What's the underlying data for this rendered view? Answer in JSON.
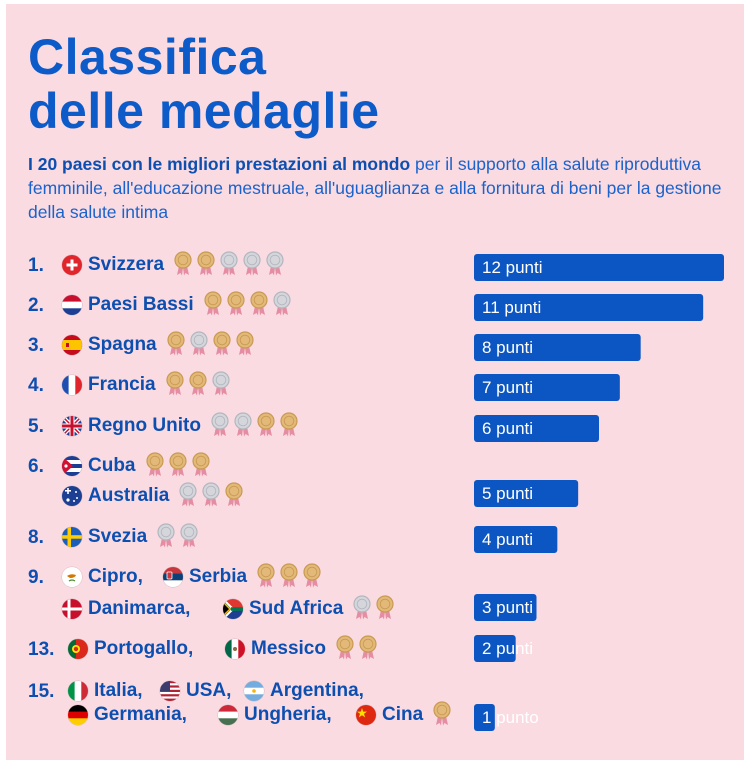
{
  "title_line1": "Classifica",
  "title_line2": "delle medaglie",
  "subtitle_bold": "I 20 paesi con le migliori prestazioni al mondo",
  "subtitle_rest": " per il supporto alla salute riproduttiva femminile, all'educazione mestruale, all'uguaglianza e alla fornitura di beni per la gestione della salute intima",
  "colors": {
    "brand_blue": "#0d5bc9",
    "bar_blue": "#0b56c2",
    "background": "#fadbe2",
    "gold_medal": "#e2b978",
    "silver_medal": "#d4d6dc"
  },
  "groups": [
    {
      "rank": "1.",
      "countries": [
        {
          "name": "Svizzera",
          "flag": "switzerland",
          "medals": [
            "gold",
            "gold",
            "silver",
            "silver",
            "silver"
          ]
        }
      ],
      "points": 12,
      "label": "12 punti"
    },
    {
      "rank": "2.",
      "countries": [
        {
          "name": "Paesi Bassi",
          "flag": "netherlands",
          "medals": [
            "gold",
            "gold",
            "gold",
            "silver"
          ]
        }
      ],
      "points": 11,
      "label": "11 punti"
    },
    {
      "rank": "3.",
      "countries": [
        {
          "name": "Spagna",
          "flag": "spain",
          "medals": [
            "gold",
            "silver",
            "gold",
            "gold"
          ]
        }
      ],
      "points": 8,
      "label": "8 punti"
    },
    {
      "rank": "4.",
      "countries": [
        {
          "name": "Francia",
          "flag": "france",
          "medals": [
            "gold",
            "gold",
            "silver"
          ]
        }
      ],
      "points": 7,
      "label": "7 punti"
    },
    {
      "rank": "5.",
      "countries": [
        {
          "name": "Regno Unito",
          "flag": "uk",
          "medals": [
            "silver",
            "silver",
            "gold",
            "gold"
          ]
        }
      ],
      "points": 6,
      "label": "6 punti"
    },
    {
      "rank": "6.",
      "countries": [
        {
          "name": "Cuba",
          "flag": "cuba",
          "medals": [
            "gold",
            "gold",
            "gold"
          ]
        },
        {
          "name": "Australia",
          "flag": "australia",
          "medals": [
            "silver",
            "silver",
            "gold"
          ]
        }
      ],
      "points": 5,
      "label": "5 punti"
    },
    {
      "rank": "8.",
      "countries": [
        {
          "name": "Svezia",
          "flag": "sweden",
          "medals": [
            "silver",
            "silver"
          ]
        }
      ],
      "points": 4,
      "label": "4 punti"
    },
    {
      "rank": "9.",
      "countries": [
        {
          "name": "Cipro,",
          "flag": "cyprus",
          "medals": []
        },
        {
          "name": "Serbia",
          "flag": "serbia",
          "medals": [
            "gold",
            "gold",
            "gold"
          ]
        },
        {
          "name": "Danimarca,",
          "flag": "denmark",
          "medals": []
        },
        {
          "name": "Sud Africa",
          "flag": "southafrica",
          "medals": [
            "silver",
            "gold"
          ]
        }
      ],
      "points": 3,
      "label": "3 punti"
    },
    {
      "rank": "13.",
      "countries": [
        {
          "name": "Portogallo,",
          "flag": "portugal",
          "medals": []
        },
        {
          "name": "Messico",
          "flag": "mexico",
          "medals": [
            "gold",
            "gold"
          ]
        }
      ],
      "points": 2,
      "label": "2 punti"
    },
    {
      "rank": "15.",
      "countries": [
        {
          "name": "Italia,",
          "flag": "italy",
          "medals": []
        },
        {
          "name": "USA,",
          "flag": "usa",
          "medals": []
        },
        {
          "name": "Argentina,",
          "flag": "argentina",
          "medals": []
        },
        {
          "name": "Germania,",
          "flag": "germany",
          "medals": []
        },
        {
          "name": "Ungheria,",
          "flag": "hungary",
          "medals": []
        },
        {
          "name": "Cina",
          "flag": "china",
          "medals": [
            "gold"
          ]
        }
      ],
      "points": 1,
      "label": "1 punto"
    }
  ],
  "chart_data": {
    "type": "bar",
    "orientation": "horizontal",
    "categories": [
      "Svizzera",
      "Paesi Bassi",
      "Spagna",
      "Francia",
      "Regno Unito",
      "Cuba / Australia",
      "Svezia",
      "Cipro / Serbia / Danimarca / Sud Africa",
      "Portogallo / Messico",
      "Italia / USA / Argentina / Germania / Ungheria / Cina"
    ],
    "values": [
      12,
      11,
      8,
      7,
      6,
      5,
      4,
      3,
      2,
      1
    ],
    "data_labels": [
      "12 punti",
      "11 punti",
      "8 punti",
      "7 punti",
      "6 punti",
      "5 punti",
      "4 punti",
      "3 punti",
      "2 punti",
      "1 punto"
    ],
    "xlim": [
      0,
      12
    ],
    "grid": false,
    "title": "Classifica delle medaglie"
  }
}
